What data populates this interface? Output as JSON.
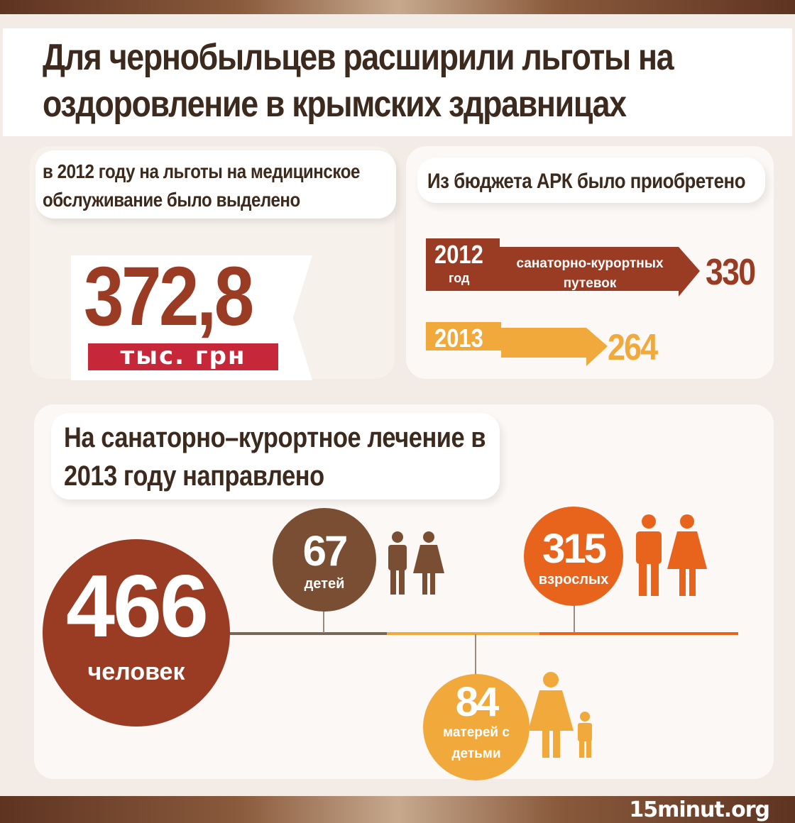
{
  "title": "Для чернобыльцев расширили льготы на оздоровление в крымских здравницах",
  "left_panel": {
    "caption": "в 2012 году на льготы на медицинское обслуживание было выделено",
    "amount": "372,8",
    "unit": "тыс. грн"
  },
  "right_panel": {
    "caption": "Из бюджета АРК было приобретено",
    "rows": [
      {
        "year": "2012",
        "year_suffix": "год",
        "label": "санаторно-курортных путевок",
        "value": "330",
        "color": "#9a3b24"
      },
      {
        "year": "2013",
        "value": "264",
        "color": "#f0a93a"
      }
    ]
  },
  "bottom_panel": {
    "caption": "На санаторно–курортное лечение в 2013 году направлено",
    "total": {
      "value": "466",
      "label": "человек",
      "color": "#9a3b24"
    },
    "groups": [
      {
        "value": "67",
        "label": "детей",
        "color": "#7a4e32",
        "icon": "boy-girl-icon"
      },
      {
        "value": "315",
        "label": "взрослых",
        "color": "#e8641c",
        "icon": "man-woman-icon"
      },
      {
        "value": "84",
        "label": "матерей с детьми",
        "color": "#f0a93a",
        "icon": "mother-child-icon"
      }
    ]
  },
  "footer": {
    "site": "15minut.org"
  }
}
